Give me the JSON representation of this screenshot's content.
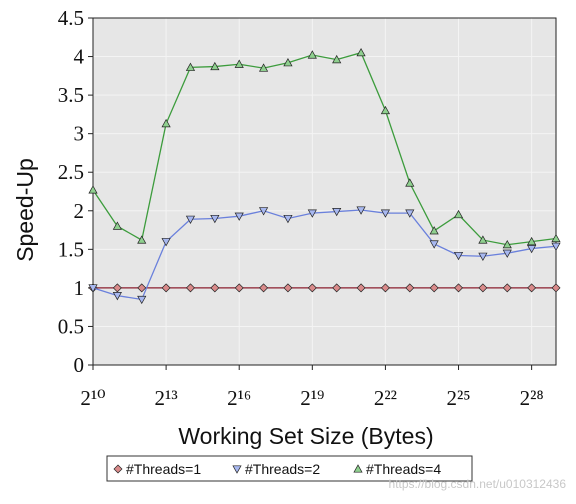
{
  "chart_data": {
    "type": "line",
    "x_label": "Working Set Size (Bytes)",
    "y_label": "Speed-Up",
    "x": [
      1024,
      2048,
      4096,
      8192,
      16384,
      32768,
      65536,
      131072,
      262144,
      524288,
      1048576,
      2097152,
      4194304,
      8388608,
      16777216,
      33554432,
      67108864,
      134217728,
      268435456,
      536870912
    ],
    "x_log_base": 2,
    "xlim": [
      1024,
      536870912
    ],
    "xticks": [
      {
        "value": 1024,
        "label": "2¹⁰"
      },
      {
        "value": 8192,
        "label": "2¹³"
      },
      {
        "value": 65536,
        "label": "2¹⁶"
      },
      {
        "value": 524288,
        "label": "2¹⁹"
      },
      {
        "value": 4194304,
        "label": "2²²"
      },
      {
        "value": 33554432,
        "label": "2²⁵"
      },
      {
        "value": 268435456,
        "label": "2²⁸"
      }
    ],
    "ylim": [
      0,
      4.5
    ],
    "yticks": [
      0,
      0.5,
      1,
      1.5,
      2,
      2.5,
      3,
      3.5,
      4,
      4.5
    ],
    "grid": true,
    "legend_position": "bottom",
    "series": [
      {
        "name": "#Threads=1",
        "color": "#8b1e2e",
        "marker_color": "#d98a8a",
        "marker": "diamond",
        "values": [
          1,
          1,
          1,
          1,
          1,
          1,
          1,
          1,
          1,
          1,
          1,
          1,
          1,
          1,
          1,
          1,
          1,
          1,
          1,
          1
        ]
      },
      {
        "name": "#Threads=2",
        "color": "#6a80dc",
        "marker_color": "#a8b8f0",
        "marker": "triangle-down",
        "values": [
          1.0,
          0.9,
          0.85,
          1.6,
          1.89,
          1.9,
          1.93,
          2.0,
          1.9,
          1.97,
          1.99,
          2.01,
          1.97,
          1.97,
          1.57,
          1.42,
          1.41,
          1.45,
          1.51,
          1.54
        ]
      },
      {
        "name": "#Threads=4",
        "color": "#3c9c3c",
        "marker_color": "#8fd08f",
        "marker": "triangle-up",
        "values": [
          2.27,
          1.8,
          1.62,
          3.13,
          3.86,
          3.87,
          3.9,
          3.85,
          3.92,
          4.02,
          3.96,
          4.05,
          3.3,
          2.36,
          1.74,
          1.95,
          1.62,
          1.56,
          1.6,
          1.64
        ]
      }
    ],
    "watermark": "https://blog.csdn.net/u010312436"
  }
}
